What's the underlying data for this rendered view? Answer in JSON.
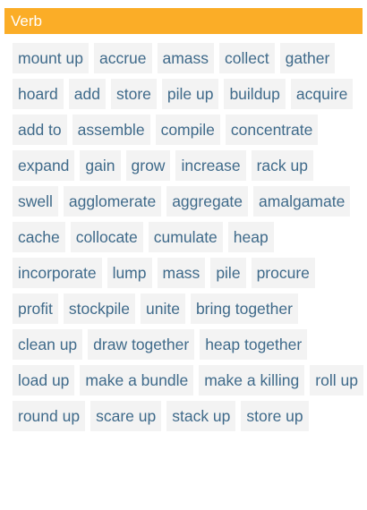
{
  "header": {
    "title": "Verb",
    "background_color": "#fbad27"
  },
  "chips": [
    "mount up",
    "accrue",
    "amass",
    "collect",
    "gather",
    "hoard",
    "add",
    "store",
    "pile up",
    "buildup",
    "acquire",
    "add to",
    "assemble",
    "compile",
    "concentrate",
    "expand",
    "gain",
    "grow",
    "increase",
    "rack up",
    "swell",
    "agglomerate",
    "aggregate",
    "amalgamate",
    "cache",
    "collocate",
    "cumulate",
    "heap",
    "incorporate",
    "lump",
    "mass",
    "pile",
    "procure",
    "profit",
    "stockpile",
    "unite",
    "bring together",
    "clean up",
    "draw together",
    "heap together",
    "load up",
    "make a bundle",
    "make a killing",
    "roll up",
    "round up",
    "scare up",
    "stack up",
    "store up"
  ],
  "colors": {
    "chip_text": "#3f6a8a",
    "chip_background": "#f3f3f3"
  }
}
